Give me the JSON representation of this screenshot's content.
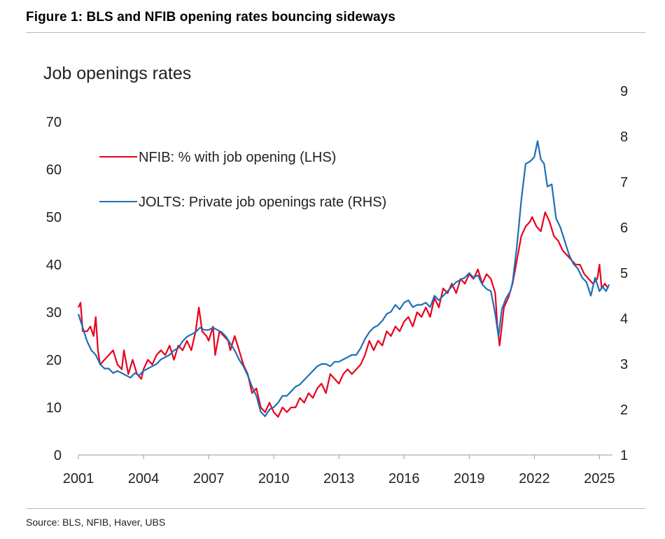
{
  "figure_title": "Figure 1: BLS and NFIB opening rates bouncing sideways",
  "source": "Source: BLS, NFIB, Haver, UBS",
  "colors": {
    "nfib": "#e8001c",
    "jolts": "#1e6fb5",
    "rule": "#b9b9b9",
    "axis": "#999999"
  },
  "chart_data": {
    "type": "line",
    "title": "Job openings rates",
    "x_ticks": [
      "2001",
      "2004",
      "2007",
      "2010",
      "2013",
      "2016",
      "2019",
      "2022",
      "2025"
    ],
    "x_range": [
      2001,
      2025.6
    ],
    "y_left": {
      "range": [
        0,
        70
      ],
      "ticks": [
        "0",
        "10",
        "20",
        "30",
        "40",
        "50",
        "60",
        "70"
      ]
    },
    "y_right": {
      "range": [
        1,
        9
      ],
      "ticks": [
        "1",
        "2",
        "3",
        "4",
        "5",
        "6",
        "7",
        "8",
        "9"
      ]
    },
    "legend_position": "top-left",
    "series": [
      {
        "name": "NFIB: % with job opening (LHS)",
        "axis": "left",
        "color": "#e8001c",
        "points": [
          [
            2001.0,
            31
          ],
          [
            2001.1,
            32
          ],
          [
            2001.2,
            26
          ],
          [
            2001.4,
            26
          ],
          [
            2001.55,
            27
          ],
          [
            2001.7,
            25
          ],
          [
            2001.8,
            29
          ],
          [
            2001.9,
            22
          ],
          [
            2002.0,
            19
          ],
          [
            2002.2,
            20
          ],
          [
            2002.4,
            21
          ],
          [
            2002.6,
            22
          ],
          [
            2002.8,
            19
          ],
          [
            2003.0,
            18
          ],
          [
            2003.1,
            22
          ],
          [
            2003.3,
            17
          ],
          [
            2003.5,
            20
          ],
          [
            2003.7,
            17
          ],
          [
            2003.9,
            16
          ],
          [
            2004.0,
            18
          ],
          [
            2004.2,
            20
          ],
          [
            2004.4,
            19
          ],
          [
            2004.6,
            21
          ],
          [
            2004.8,
            22
          ],
          [
            2005.0,
            21
          ],
          [
            2005.2,
            23
          ],
          [
            2005.4,
            20
          ],
          [
            2005.6,
            23
          ],
          [
            2005.8,
            22
          ],
          [
            2006.0,
            24
          ],
          [
            2006.2,
            22
          ],
          [
            2006.4,
            26
          ],
          [
            2006.55,
            31
          ],
          [
            2006.7,
            26
          ],
          [
            2006.9,
            25
          ],
          [
            2007.0,
            24
          ],
          [
            2007.2,
            27
          ],
          [
            2007.3,
            21
          ],
          [
            2007.5,
            26
          ],
          [
            2007.7,
            25
          ],
          [
            2007.9,
            24
          ],
          [
            2008.0,
            22
          ],
          [
            2008.2,
            25
          ],
          [
            2008.4,
            22
          ],
          [
            2008.6,
            19
          ],
          [
            2008.8,
            17
          ],
          [
            2009.0,
            13
          ],
          [
            2009.2,
            14
          ],
          [
            2009.4,
            10
          ],
          [
            2009.6,
            9
          ],
          [
            2009.8,
            11
          ],
          [
            2010.0,
            9
          ],
          [
            2010.2,
            8
          ],
          [
            2010.4,
            10
          ],
          [
            2010.6,
            9
          ],
          [
            2010.8,
            10
          ],
          [
            2011.0,
            10
          ],
          [
            2011.2,
            12
          ],
          [
            2011.4,
            11
          ],
          [
            2011.6,
            13
          ],
          [
            2011.8,
            12
          ],
          [
            2012.0,
            14
          ],
          [
            2012.2,
            15
          ],
          [
            2012.4,
            13
          ],
          [
            2012.6,
            17
          ],
          [
            2012.8,
            16
          ],
          [
            2013.0,
            15
          ],
          [
            2013.2,
            17
          ],
          [
            2013.4,
            18
          ],
          [
            2013.6,
            17
          ],
          [
            2013.8,
            18
          ],
          [
            2014.0,
            19
          ],
          [
            2014.2,
            21
          ],
          [
            2014.4,
            24
          ],
          [
            2014.6,
            22
          ],
          [
            2014.8,
            24
          ],
          [
            2015.0,
            23
          ],
          [
            2015.2,
            26
          ],
          [
            2015.4,
            25
          ],
          [
            2015.6,
            27
          ],
          [
            2015.8,
            26
          ],
          [
            2016.0,
            28
          ],
          [
            2016.2,
            29
          ],
          [
            2016.4,
            27
          ],
          [
            2016.6,
            30
          ],
          [
            2016.8,
            29
          ],
          [
            2017.0,
            31
          ],
          [
            2017.2,
            29
          ],
          [
            2017.4,
            33
          ],
          [
            2017.6,
            31
          ],
          [
            2017.8,
            35
          ],
          [
            2018.0,
            34
          ],
          [
            2018.2,
            36
          ],
          [
            2018.4,
            34
          ],
          [
            2018.6,
            37
          ],
          [
            2018.8,
            36
          ],
          [
            2019.0,
            38
          ],
          [
            2019.2,
            37
          ],
          [
            2019.4,
            39
          ],
          [
            2019.6,
            36
          ],
          [
            2019.8,
            38
          ],
          [
            2020.0,
            37
          ],
          [
            2020.2,
            34
          ],
          [
            2020.3,
            27
          ],
          [
            2020.4,
            23
          ],
          [
            2020.6,
            31
          ],
          [
            2020.8,
            33
          ],
          [
            2021.0,
            36
          ],
          [
            2021.2,
            41
          ],
          [
            2021.4,
            46
          ],
          [
            2021.6,
            48
          ],
          [
            2021.8,
            49
          ],
          [
            2021.9,
            50
          ],
          [
            2022.1,
            48
          ],
          [
            2022.3,
            47
          ],
          [
            2022.5,
            51
          ],
          [
            2022.7,
            49
          ],
          [
            2022.9,
            46
          ],
          [
            2023.1,
            45
          ],
          [
            2023.3,
            43
          ],
          [
            2023.5,
            42
          ],
          [
            2023.7,
            41
          ],
          [
            2023.9,
            40
          ],
          [
            2024.1,
            40
          ],
          [
            2024.3,
            38
          ],
          [
            2024.5,
            37
          ],
          [
            2024.7,
            36
          ],
          [
            2024.9,
            37
          ],
          [
            2025.0,
            40
          ],
          [
            2025.1,
            35
          ],
          [
            2025.25,
            36
          ],
          [
            2025.4,
            35
          ]
        ]
      },
      {
        "name": "JOLTS: Private job openings rate (RHS)",
        "axis": "right",
        "color": "#1e6fb5",
        "points": [
          [
            2001.0,
            4.1
          ],
          [
            2001.2,
            3.8
          ],
          [
            2001.4,
            3.5
          ],
          [
            2001.6,
            3.3
          ],
          [
            2001.8,
            3.2
          ],
          [
            2002.0,
            3.0
          ],
          [
            2002.2,
            2.9
          ],
          [
            2002.4,
            2.9
          ],
          [
            2002.6,
            2.8
          ],
          [
            2002.8,
            2.85
          ],
          [
            2003.0,
            2.8
          ],
          [
            2003.2,
            2.75
          ],
          [
            2003.4,
            2.7
          ],
          [
            2003.6,
            2.8
          ],
          [
            2003.8,
            2.75
          ],
          [
            2004.0,
            2.85
          ],
          [
            2004.2,
            2.9
          ],
          [
            2004.4,
            2.95
          ],
          [
            2004.6,
            3.0
          ],
          [
            2004.8,
            3.1
          ],
          [
            2005.0,
            3.15
          ],
          [
            2005.2,
            3.2
          ],
          [
            2005.4,
            3.3
          ],
          [
            2005.6,
            3.35
          ],
          [
            2005.8,
            3.5
          ],
          [
            2006.0,
            3.6
          ],
          [
            2006.2,
            3.65
          ],
          [
            2006.4,
            3.7
          ],
          [
            2006.6,
            3.8
          ],
          [
            2006.8,
            3.75
          ],
          [
            2007.0,
            3.75
          ],
          [
            2007.2,
            3.8
          ],
          [
            2007.4,
            3.75
          ],
          [
            2007.6,
            3.7
          ],
          [
            2007.8,
            3.6
          ],
          [
            2008.0,
            3.45
          ],
          [
            2008.2,
            3.3
          ],
          [
            2008.4,
            3.1
          ],
          [
            2008.6,
            2.95
          ],
          [
            2008.8,
            2.75
          ],
          [
            2009.0,
            2.5
          ],
          [
            2009.2,
            2.3
          ],
          [
            2009.4,
            1.95
          ],
          [
            2009.6,
            1.85
          ],
          [
            2009.8,
            2.0
          ],
          [
            2010.0,
            2.05
          ],
          [
            2010.2,
            2.15
          ],
          [
            2010.4,
            2.3
          ],
          [
            2010.6,
            2.3
          ],
          [
            2010.8,
            2.4
          ],
          [
            2011.0,
            2.5
          ],
          [
            2011.2,
            2.55
          ],
          [
            2011.4,
            2.65
          ],
          [
            2011.6,
            2.75
          ],
          [
            2011.8,
            2.85
          ],
          [
            2012.0,
            2.95
          ],
          [
            2012.2,
            3.0
          ],
          [
            2012.4,
            3.0
          ],
          [
            2012.6,
            2.95
          ],
          [
            2012.8,
            3.05
          ],
          [
            2013.0,
            3.05
          ],
          [
            2013.2,
            3.1
          ],
          [
            2013.4,
            3.15
          ],
          [
            2013.6,
            3.2
          ],
          [
            2013.8,
            3.2
          ],
          [
            2014.0,
            3.35
          ],
          [
            2014.2,
            3.55
          ],
          [
            2014.4,
            3.7
          ],
          [
            2014.6,
            3.8
          ],
          [
            2014.8,
            3.85
          ],
          [
            2015.0,
            3.95
          ],
          [
            2015.2,
            4.1
          ],
          [
            2015.4,
            4.15
          ],
          [
            2015.6,
            4.3
          ],
          [
            2015.8,
            4.2
          ],
          [
            2016.0,
            4.35
          ],
          [
            2016.2,
            4.4
          ],
          [
            2016.4,
            4.25
          ],
          [
            2016.6,
            4.3
          ],
          [
            2016.8,
            4.3
          ],
          [
            2017.0,
            4.35
          ],
          [
            2017.2,
            4.25
          ],
          [
            2017.4,
            4.5
          ],
          [
            2017.6,
            4.4
          ],
          [
            2017.8,
            4.5
          ],
          [
            2018.0,
            4.6
          ],
          [
            2018.2,
            4.7
          ],
          [
            2018.4,
            4.8
          ],
          [
            2018.6,
            4.85
          ],
          [
            2018.8,
            4.9
          ],
          [
            2019.0,
            5.0
          ],
          [
            2019.2,
            4.9
          ],
          [
            2019.4,
            4.95
          ],
          [
            2019.6,
            4.75
          ],
          [
            2019.8,
            4.65
          ],
          [
            2020.0,
            4.6
          ],
          [
            2020.2,
            4.1
          ],
          [
            2020.35,
            3.6
          ],
          [
            2020.5,
            4.2
          ],
          [
            2020.7,
            4.45
          ],
          [
            2020.9,
            4.6
          ],
          [
            2021.0,
            4.8
          ],
          [
            2021.2,
            5.6
          ],
          [
            2021.4,
            6.6
          ],
          [
            2021.6,
            7.4
          ],
          [
            2021.8,
            7.45
          ],
          [
            2022.0,
            7.55
          ],
          [
            2022.15,
            7.9
          ],
          [
            2022.3,
            7.5
          ],
          [
            2022.45,
            7.4
          ],
          [
            2022.6,
            6.9
          ],
          [
            2022.8,
            6.95
          ],
          [
            2023.0,
            6.2
          ],
          [
            2023.2,
            6.0
          ],
          [
            2023.4,
            5.7
          ],
          [
            2023.6,
            5.4
          ],
          [
            2023.8,
            5.2
          ],
          [
            2024.0,
            5.1
          ],
          [
            2024.2,
            4.9
          ],
          [
            2024.4,
            4.8
          ],
          [
            2024.6,
            4.5
          ],
          [
            2024.8,
            4.9
          ],
          [
            2025.0,
            4.6
          ],
          [
            2025.15,
            4.7
          ],
          [
            2025.3,
            4.6
          ],
          [
            2025.45,
            4.75
          ]
        ]
      }
    ]
  }
}
